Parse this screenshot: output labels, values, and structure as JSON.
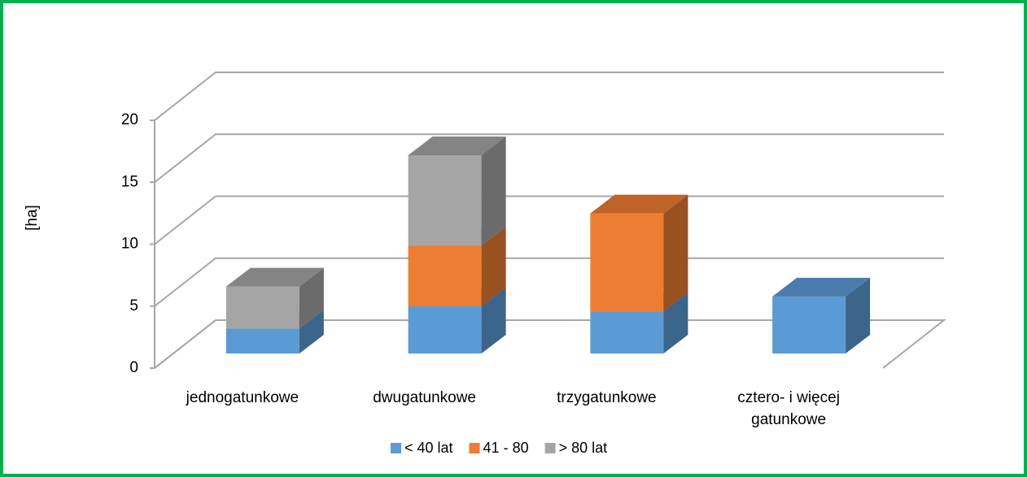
{
  "chart_data": {
    "type": "bar3d_stacked",
    "y_label": "[ha]",
    "categories": [
      "jednogatunkowe",
      "dwugatunkowe",
      "trzygatunkowe",
      "cztero- i więcej gatunkowe"
    ],
    "series": [
      {
        "name": "< 40 lat",
        "color": "#5b9bd5",
        "values": [
          2.0,
          3.8,
          3.4,
          4.6
        ]
      },
      {
        "name": "41 - 80",
        "color": "#ed7d31",
        "values": [
          0,
          4.9,
          7.9,
          0
        ]
      },
      {
        "name": "> 80 lat",
        "color": "#a5a5a5",
        "values": [
          3.4,
          7.3,
          0,
          0
        ]
      }
    ],
    "ylim": [
      0,
      20
    ],
    "yticks": [
      0,
      5,
      10,
      15,
      20
    ],
    "grid": true
  }
}
